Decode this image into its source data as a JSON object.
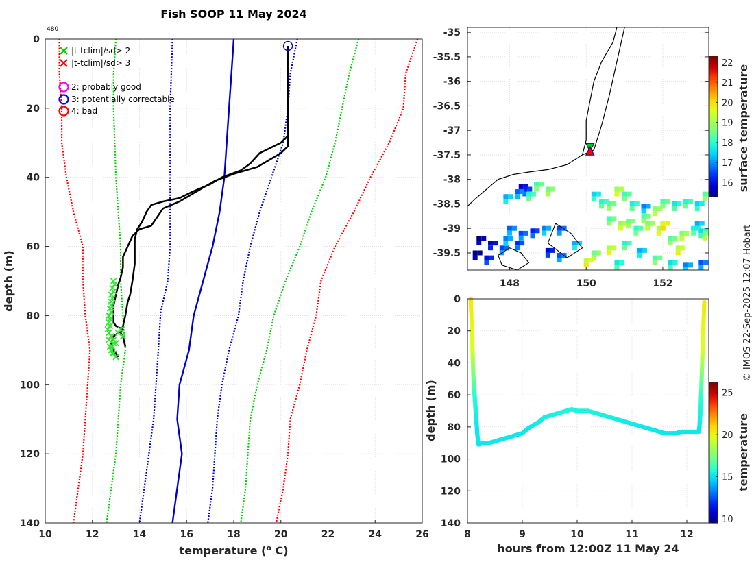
{
  "page": {
    "title": "Fish SOOP 11 May 2024",
    "id_label": "480",
    "credit": "© IMOS 22-Sep-2025 12:07 Hobart"
  },
  "colors": {
    "cmap": [
      "#00007f",
      "#0000d5",
      "#0030ff",
      "#0082ff",
      "#00d4ff",
      "#26ffd0",
      "#72ff87",
      "#a8ff4f",
      "#e0ff16",
      "#ffd400",
      "#ff8a00",
      "#ff3c00",
      "#d10000",
      "#7f0000"
    ],
    "land": "#000000"
  },
  "legend": {
    "x2": "|t-tclim|/sd> 2",
    "x3": "|t-tclim|/sd> 3",
    "q2": "2: probably good",
    "q3": "3: potentially correctable",
    "q4": "4: bad"
  },
  "chart_data": [
    {
      "type": "line",
      "name": "profile",
      "xlabel": "temperature (o C)",
      "xlabel_main": "temperature (",
      "xlabel_sup": "o",
      "xlabel_tail": " C)",
      "ylabel": "depth (m)",
      "xlim": [
        10,
        26
      ],
      "ylim": [
        140,
        0
      ],
      "xticks": [
        10,
        12,
        14,
        16,
        18,
        20,
        22,
        24,
        26
      ],
      "yticks": [
        0,
        20,
        40,
        60,
        80,
        100,
        120,
        140
      ],
      "series": [
        {
          "name": "red-left",
          "color": "#ff0000",
          "dash": "dot",
          "depth": [
            0,
            10,
            20,
            30,
            40,
            50,
            60,
            70,
            80,
            90,
            100,
            110,
            120,
            130,
            140
          ],
          "temp": [
            10.6,
            10.6,
            10.7,
            10.7,
            10.9,
            11.2,
            11.6,
            11.6,
            11.7,
            11.9,
            11.8,
            11.7,
            11.6,
            11.4,
            11.2
          ]
        },
        {
          "name": "green-left",
          "color": "#00cc00",
          "dash": "dot",
          "depth": [
            0,
            10,
            20,
            40,
            60,
            70,
            80,
            90,
            100,
            110,
            120,
            130,
            140
          ],
          "temp": [
            13.0,
            12.9,
            12.9,
            13.0,
            13.2,
            13.2,
            13.3,
            13.4,
            13.2,
            13.1,
            13.0,
            12.8,
            12.6
          ]
        },
        {
          "name": "blue-left",
          "color": "#0000cc",
          "dash": "dot",
          "depth": [
            0,
            20,
            40,
            60,
            70,
            79,
            90,
            100,
            110,
            120,
            130,
            140
          ],
          "temp": [
            15.4,
            15.3,
            15.3,
            15.3,
            15.2,
            14.9,
            14.8,
            14.7,
            14.6,
            14.4,
            14.2,
            14.0
          ]
        },
        {
          "name": "mean",
          "color": "#0000cc",
          "dash": "solid",
          "depth": [
            0,
            10,
            20,
            30,
            40,
            50,
            60,
            70,
            80,
            90,
            100,
            110,
            120,
            130,
            140
          ],
          "temp": [
            18.0,
            17.9,
            17.8,
            17.7,
            17.6,
            17.4,
            17.1,
            16.7,
            16.3,
            16.1,
            15.7,
            15.6,
            15.8,
            15.6,
            15.4
          ]
        },
        {
          "name": "blue-right",
          "color": "#0000cc",
          "dash": "dot",
          "depth": [
            0,
            10,
            20,
            30,
            40,
            50,
            60,
            70,
            80,
            90,
            100,
            110,
            120,
            130,
            140
          ],
          "temp": [
            20.7,
            20.4,
            20.3,
            20.1,
            19.6,
            19.1,
            18.7,
            18.4,
            18.2,
            17.8,
            17.5,
            17.3,
            17.2,
            17.1,
            16.9
          ]
        },
        {
          "name": "green-right",
          "color": "#00cc00",
          "dash": "dot",
          "depth": [
            0,
            10,
            20,
            30,
            40,
            50,
            60,
            70,
            80,
            90,
            100,
            110,
            120,
            130,
            140
          ],
          "temp": [
            23.3,
            22.9,
            22.6,
            22.3,
            21.9,
            21.3,
            20.8,
            20.2,
            19.7,
            19.4,
            19.0,
            18.7,
            18.6,
            18.5,
            18.3
          ]
        },
        {
          "name": "red-right",
          "color": "#ff0000",
          "dash": "dot",
          "depth": [
            0,
            10,
            20,
            30,
            40,
            50,
            60,
            70,
            80,
            90,
            100,
            110,
            120,
            130,
            140
          ],
          "temp": [
            25.8,
            25.3,
            25.2,
            24.6,
            23.8,
            23.1,
            22.3,
            21.7,
            21.5,
            21.1,
            20.8,
            20.4,
            20.3,
            20.1,
            19.8
          ]
        },
        {
          "name": "profile-down",
          "color": "#000000",
          "dash": "solid",
          "width": 2.5,
          "depth": [
            2,
            10,
            20,
            25,
            28,
            30,
            33,
            36,
            38,
            40,
            42,
            44,
            46,
            47,
            48,
            50,
            53,
            55,
            58,
            60,
            62,
            65,
            70,
            74,
            76,
            80,
            83,
            85,
            86,
            89
          ],
          "temp": [
            20.3,
            20.3,
            20.3,
            20.3,
            20.3,
            20.0,
            19.1,
            18.7,
            18.3,
            17.5,
            17.0,
            16.3,
            15.7,
            15.0,
            14.5,
            14.3,
            14.1,
            13.9,
            13.8,
            13.8,
            13.8,
            13.8,
            13.7,
            13.6,
            13.5,
            13.4,
            13.3,
            13.2,
            13.3,
            13.4
          ]
        },
        {
          "name": "profile-up",
          "color": "#000000",
          "dash": "solid",
          "width": 2.5,
          "depth": [
            2,
            10,
            20,
            25,
            28,
            31,
            33,
            35,
            37,
            39,
            41,
            43,
            45,
            47,
            49,
            52,
            54,
            55,
            57,
            60,
            63,
            66,
            69,
            71,
            74,
            77,
            80,
            82,
            83,
            84,
            85,
            86,
            88,
            90,
            92
          ],
          "temp": [
            20.3,
            20.3,
            20.3,
            20.3,
            20.3,
            20.3,
            20.0,
            19.5,
            19.0,
            18.0,
            17.2,
            16.7,
            16.2,
            15.7,
            15.0,
            14.7,
            14.5,
            14.0,
            13.7,
            13.5,
            13.3,
            13.3,
            13.2,
            13.1,
            13.0,
            12.9,
            12.9,
            12.9,
            13.0,
            13.3,
            13.1,
            12.9,
            12.8,
            12.9,
            13.1
          ]
        }
      ],
      "flags_x2": {
        "depth": [
          70,
          72,
          74,
          76,
          78,
          80,
          82,
          84,
          85,
          86,
          87,
          88,
          89,
          90,
          91,
          92,
          71,
          73,
          75,
          77,
          79,
          81,
          83,
          85,
          87,
          89,
          91,
          84,
          86,
          88
        ],
        "temp": [
          12.9,
          12.85,
          12.8,
          12.8,
          12.75,
          12.7,
          12.7,
          12.65,
          12.7,
          12.8,
          12.9,
          13.0,
          12.85,
          12.8,
          12.9,
          13.0,
          12.95,
          12.9,
          12.85,
          12.8,
          12.8,
          12.75,
          12.75,
          13.1,
          12.7,
          12.75,
          12.85,
          13.2,
          13.3,
          12.9
        ]
      },
      "flag_q3": {
        "depth": 2,
        "temp": 20.3
      }
    },
    {
      "type": "heatmap",
      "name": "map",
      "colorbar_label": "surface temperature",
      "xlim": [
        146.9,
        153.2
      ],
      "ylim": [
        -39.85,
        -34.9
      ],
      "xticks": [
        148,
        150,
        152
      ],
      "yticks": [
        -35,
        -35.5,
        -36,
        -36.5,
        -37,
        -37.5,
        -38,
        -38.5,
        -39,
        -39.5
      ],
      "xtick_labels": [
        "148",
        "150",
        "152"
      ],
      "ytick_labels": [
        "-35",
        "-35.5",
        "-36",
        "-36.5",
        "-37",
        "-37.5",
        "-38",
        "-38.5",
        "-39",
        "-39.5"
      ],
      "clim": [
        15.3,
        22.3
      ],
      "cticks": [
        16,
        17,
        18,
        19,
        20,
        21,
        22
      ],
      "cticks_labels": [
        "16",
        "17",
        "18",
        "19",
        "20",
        "21",
        "22"
      ],
      "markers": [
        {
          "lon": 150.1,
          "lat": -37.35,
          "shape": "triangle-down",
          "color": "#00cc00"
        },
        {
          "lon": 150.1,
          "lat": -37.42,
          "shape": "triangle-up",
          "color": "#ff0000"
        }
      ],
      "coast": [
        [
          150.8,
          -34.9
        ],
        [
          150.7,
          -35.2
        ],
        [
          150.4,
          -35.6
        ],
        [
          150.2,
          -36.0
        ],
        [
          150.1,
          -36.4
        ],
        [
          150.0,
          -36.8
        ],
        [
          150.0,
          -37.2
        ],
        [
          149.9,
          -37.5
        ],
        [
          149.5,
          -37.7
        ],
        [
          149.0,
          -37.8
        ],
        [
          148.5,
          -37.85
        ],
        [
          148.1,
          -37.9
        ],
        [
          147.7,
          -38.0
        ],
        [
          147.4,
          -38.2
        ],
        [
          147.1,
          -38.4
        ],
        [
          146.9,
          -38.55
        ]
      ],
      "border": [
        [
          151.0,
          -34.9
        ],
        [
          150.8,
          -35.6
        ],
        [
          150.6,
          -36.3
        ],
        [
          150.4,
          -36.9
        ],
        [
          150.2,
          -37.4
        ],
        [
          149.9,
          -37.5
        ]
      ],
      "islands": [
        [
          [
            148.0,
            -39.4
          ],
          [
            148.3,
            -39.5
          ],
          [
            148.5,
            -39.7
          ],
          [
            148.2,
            -39.85
          ],
          [
            147.8,
            -39.75
          ],
          [
            147.7,
            -39.55
          ]
        ],
        [
          [
            149.2,
            -38.9
          ],
          [
            149.6,
            -39.1
          ],
          [
            149.9,
            -39.4
          ],
          [
            149.5,
            -39.6
          ],
          [
            149.0,
            -39.3
          ]
        ]
      ],
      "sst_points": [
        [
          148.3,
          -38.15,
          16.0
        ],
        [
          148.4,
          -38.2,
          16.5
        ],
        [
          148.2,
          -38.25,
          17.0
        ],
        [
          147.9,
          -38.35,
          17.5
        ],
        [
          148.5,
          -38.3,
          18.2
        ],
        [
          148.7,
          -38.1,
          18.5
        ],
        [
          149.0,
          -38.2,
          18.8
        ],
        [
          150.2,
          -38.3,
          17.8
        ],
        [
          150.4,
          -38.45,
          18.2
        ],
        [
          150.6,
          -38.5,
          18.6
        ],
        [
          150.8,
          -38.2,
          19.2
        ],
        [
          151.0,
          -38.3,
          18.4
        ],
        [
          151.2,
          -38.5,
          18.1
        ],
        [
          151.5,
          -38.55,
          17.2
        ],
        [
          151.8,
          -38.6,
          19.0
        ],
        [
          152.0,
          -38.45,
          18.5
        ],
        [
          152.3,
          -38.5,
          18.0
        ],
        [
          152.6,
          -38.45,
          18.2
        ],
        [
          152.9,
          -38.5,
          17.8
        ],
        [
          153.1,
          -38.3,
          18.6
        ],
        [
          150.6,
          -38.8,
          18.5
        ],
        [
          150.9,
          -38.9,
          19.2
        ],
        [
          151.1,
          -38.85,
          18.8
        ],
        [
          151.3,
          -39.0,
          18.3
        ],
        [
          151.6,
          -38.9,
          19.0
        ],
        [
          151.9,
          -39.0,
          19.4
        ],
        [
          152.2,
          -39.2,
          18.6
        ],
        [
          152.5,
          -39.1,
          19.0
        ],
        [
          152.8,
          -39.0,
          18.1
        ],
        [
          153.0,
          -39.05,
          17.9
        ],
        [
          148.0,
          -39.0,
          17.0
        ],
        [
          148.3,
          -39.1,
          16.8
        ],
        [
          148.6,
          -39.05,
          16.5
        ],
        [
          148.9,
          -39.0,
          17.2
        ],
        [
          149.3,
          -39.0,
          16.8
        ],
        [
          147.2,
          -39.2,
          15.6
        ],
        [
          147.5,
          -39.3,
          16.0
        ],
        [
          147.8,
          -39.4,
          16.8
        ],
        [
          147.1,
          -39.5,
          15.4
        ],
        [
          147.4,
          -39.6,
          16.3
        ],
        [
          147.9,
          -39.2,
          17.2
        ],
        [
          148.2,
          -39.3,
          16.6
        ],
        [
          149.0,
          -39.45,
          16.2
        ],
        [
          149.3,
          -39.55,
          16.9
        ],
        [
          149.7,
          -39.3,
          17.5
        ],
        [
          150.2,
          -39.5,
          18.8
        ],
        [
          150.6,
          -39.4,
          19.4
        ],
        [
          151.0,
          -39.3,
          18.2
        ],
        [
          151.4,
          -39.45,
          17.5
        ],
        [
          151.8,
          -39.6,
          18.5
        ],
        [
          152.2,
          -39.7,
          17.9
        ],
        [
          152.6,
          -39.75,
          17.2
        ],
        [
          153.0,
          -39.7,
          16.9
        ],
        [
          150.0,
          -39.65,
          19.6
        ],
        [
          150.8,
          -39.7,
          18.0
        ],
        [
          152.4,
          -39.4,
          19.5
        ],
        [
          152.0,
          -38.9,
          19.8
        ],
        [
          151.5,
          -38.75,
          18.6
        ],
        [
          152.9,
          -38.9,
          17.5
        ],
        [
          153.1,
          -39.1,
          18.9
        ]
      ]
    },
    {
      "type": "scatter",
      "name": "time-depth",
      "xlabel": "hours from 12:00Z 11 May 24",
      "ylabel": "depth (m)",
      "colorbar_label": "temperature",
      "xlim": [
        8,
        12.4
      ],
      "ylim": [
        140,
        0
      ],
      "xticks": [
        8,
        9,
        10,
        11,
        12
      ],
      "yticks": [
        0,
        20,
        40,
        60,
        80,
        100,
        120,
        140
      ],
      "clim": [
        9.5,
        26.2
      ],
      "cticks": [
        10,
        15,
        20,
        25
      ],
      "cticks_labels": [
        "10",
        "15",
        "20",
        "25"
      ],
      "down": {
        "hours": [
          8.06,
          8.07,
          8.08,
          8.09,
          8.1,
          8.11,
          8.12,
          8.13,
          8.14,
          8.15,
          8.16,
          8.17,
          8.18,
          8.2
        ],
        "depth": [
          0,
          10,
          20,
          30,
          40,
          50,
          55,
          60,
          65,
          70,
          75,
          80,
          85,
          91
        ]
      },
      "bottom": {
        "hours": [
          8.2,
          8.3,
          8.4,
          8.5,
          8.6,
          8.7,
          8.8,
          8.9,
          9.0,
          9.1,
          9.2,
          9.3,
          9.4,
          9.5,
          9.6,
          9.7,
          9.8,
          9.9,
          10.0,
          10.1,
          10.2,
          10.3,
          10.4,
          10.5,
          10.6,
          10.7,
          10.8,
          10.9,
          11.0,
          11.1,
          11.2,
          11.3,
          11.4,
          11.5,
          11.6,
          11.7,
          11.8,
          11.9,
          12.0,
          12.1,
          12.2
        ],
        "depth": [
          91,
          90,
          90,
          89,
          88,
          87,
          86,
          85,
          84,
          81,
          79,
          77,
          74,
          73,
          72,
          71,
          70,
          69,
          70,
          70,
          70,
          71,
          72,
          73,
          74,
          75,
          76,
          77,
          78,
          79,
          80,
          81,
          82,
          83,
          84,
          84,
          84,
          83,
          83,
          83,
          83
        ]
      },
      "up": {
        "hours": [
          12.22,
          12.23,
          12.24,
          12.25,
          12.26,
          12.27,
          12.28,
          12.29,
          12.3,
          12.31,
          12.32
        ],
        "depth": [
          83,
          80,
          75,
          70,
          60,
          50,
          40,
          30,
          20,
          10,
          1
        ]
      }
    }
  ]
}
